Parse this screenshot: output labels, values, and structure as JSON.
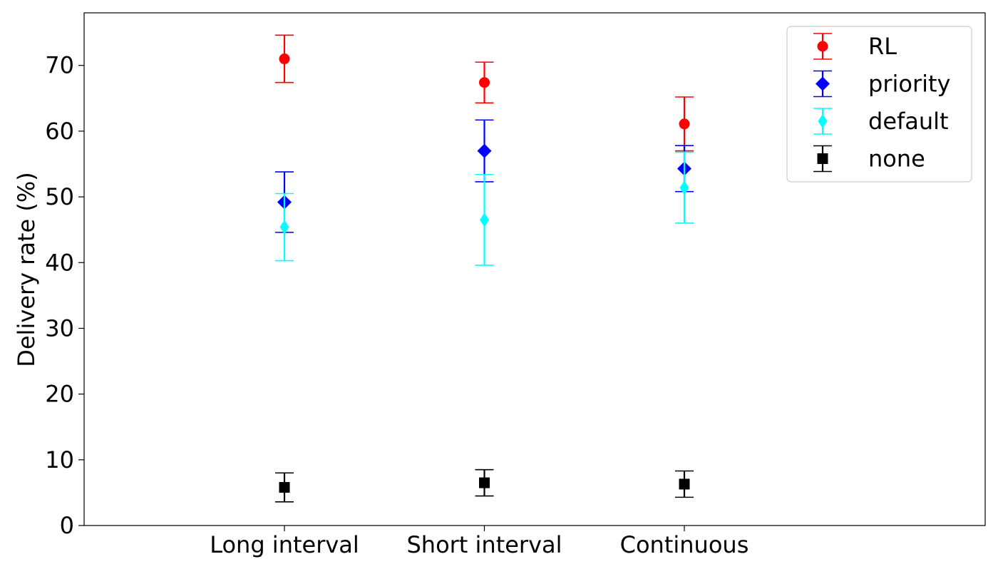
{
  "chart_data": {
    "type": "scatter",
    "categories": [
      "Long interval",
      "Short interval",
      "Continuous"
    ],
    "xlabel": "",
    "ylabel": "Delivery rate (%)",
    "ylim": [
      0,
      78
    ],
    "yticks": [
      0,
      10,
      20,
      30,
      40,
      50,
      60,
      70
    ],
    "grid": false,
    "legend_position": "top-right",
    "series": [
      {
        "name": "RL",
        "color": "#ff0000",
        "marker": "circle",
        "values": [
          71.0,
          67.4,
          61.1
        ],
        "errors": [
          3.6,
          3.1,
          4.1
        ]
      },
      {
        "name": "priority",
        "color": "#0000ff",
        "marker": "diamond",
        "values": [
          49.2,
          57.0,
          54.3
        ],
        "errors": [
          4.6,
          4.7,
          3.5
        ]
      },
      {
        "name": "default",
        "color": "#00ffff",
        "marker": "thin-diamond",
        "values": [
          45.4,
          46.5,
          51.4
        ],
        "errors": [
          5.1,
          6.9,
          5.4
        ]
      },
      {
        "name": "none",
        "color": "#000000",
        "marker": "square",
        "values": [
          5.8,
          6.5,
          6.3
        ],
        "errors": [
          2.2,
          2.0,
          2.0
        ]
      }
    ]
  }
}
